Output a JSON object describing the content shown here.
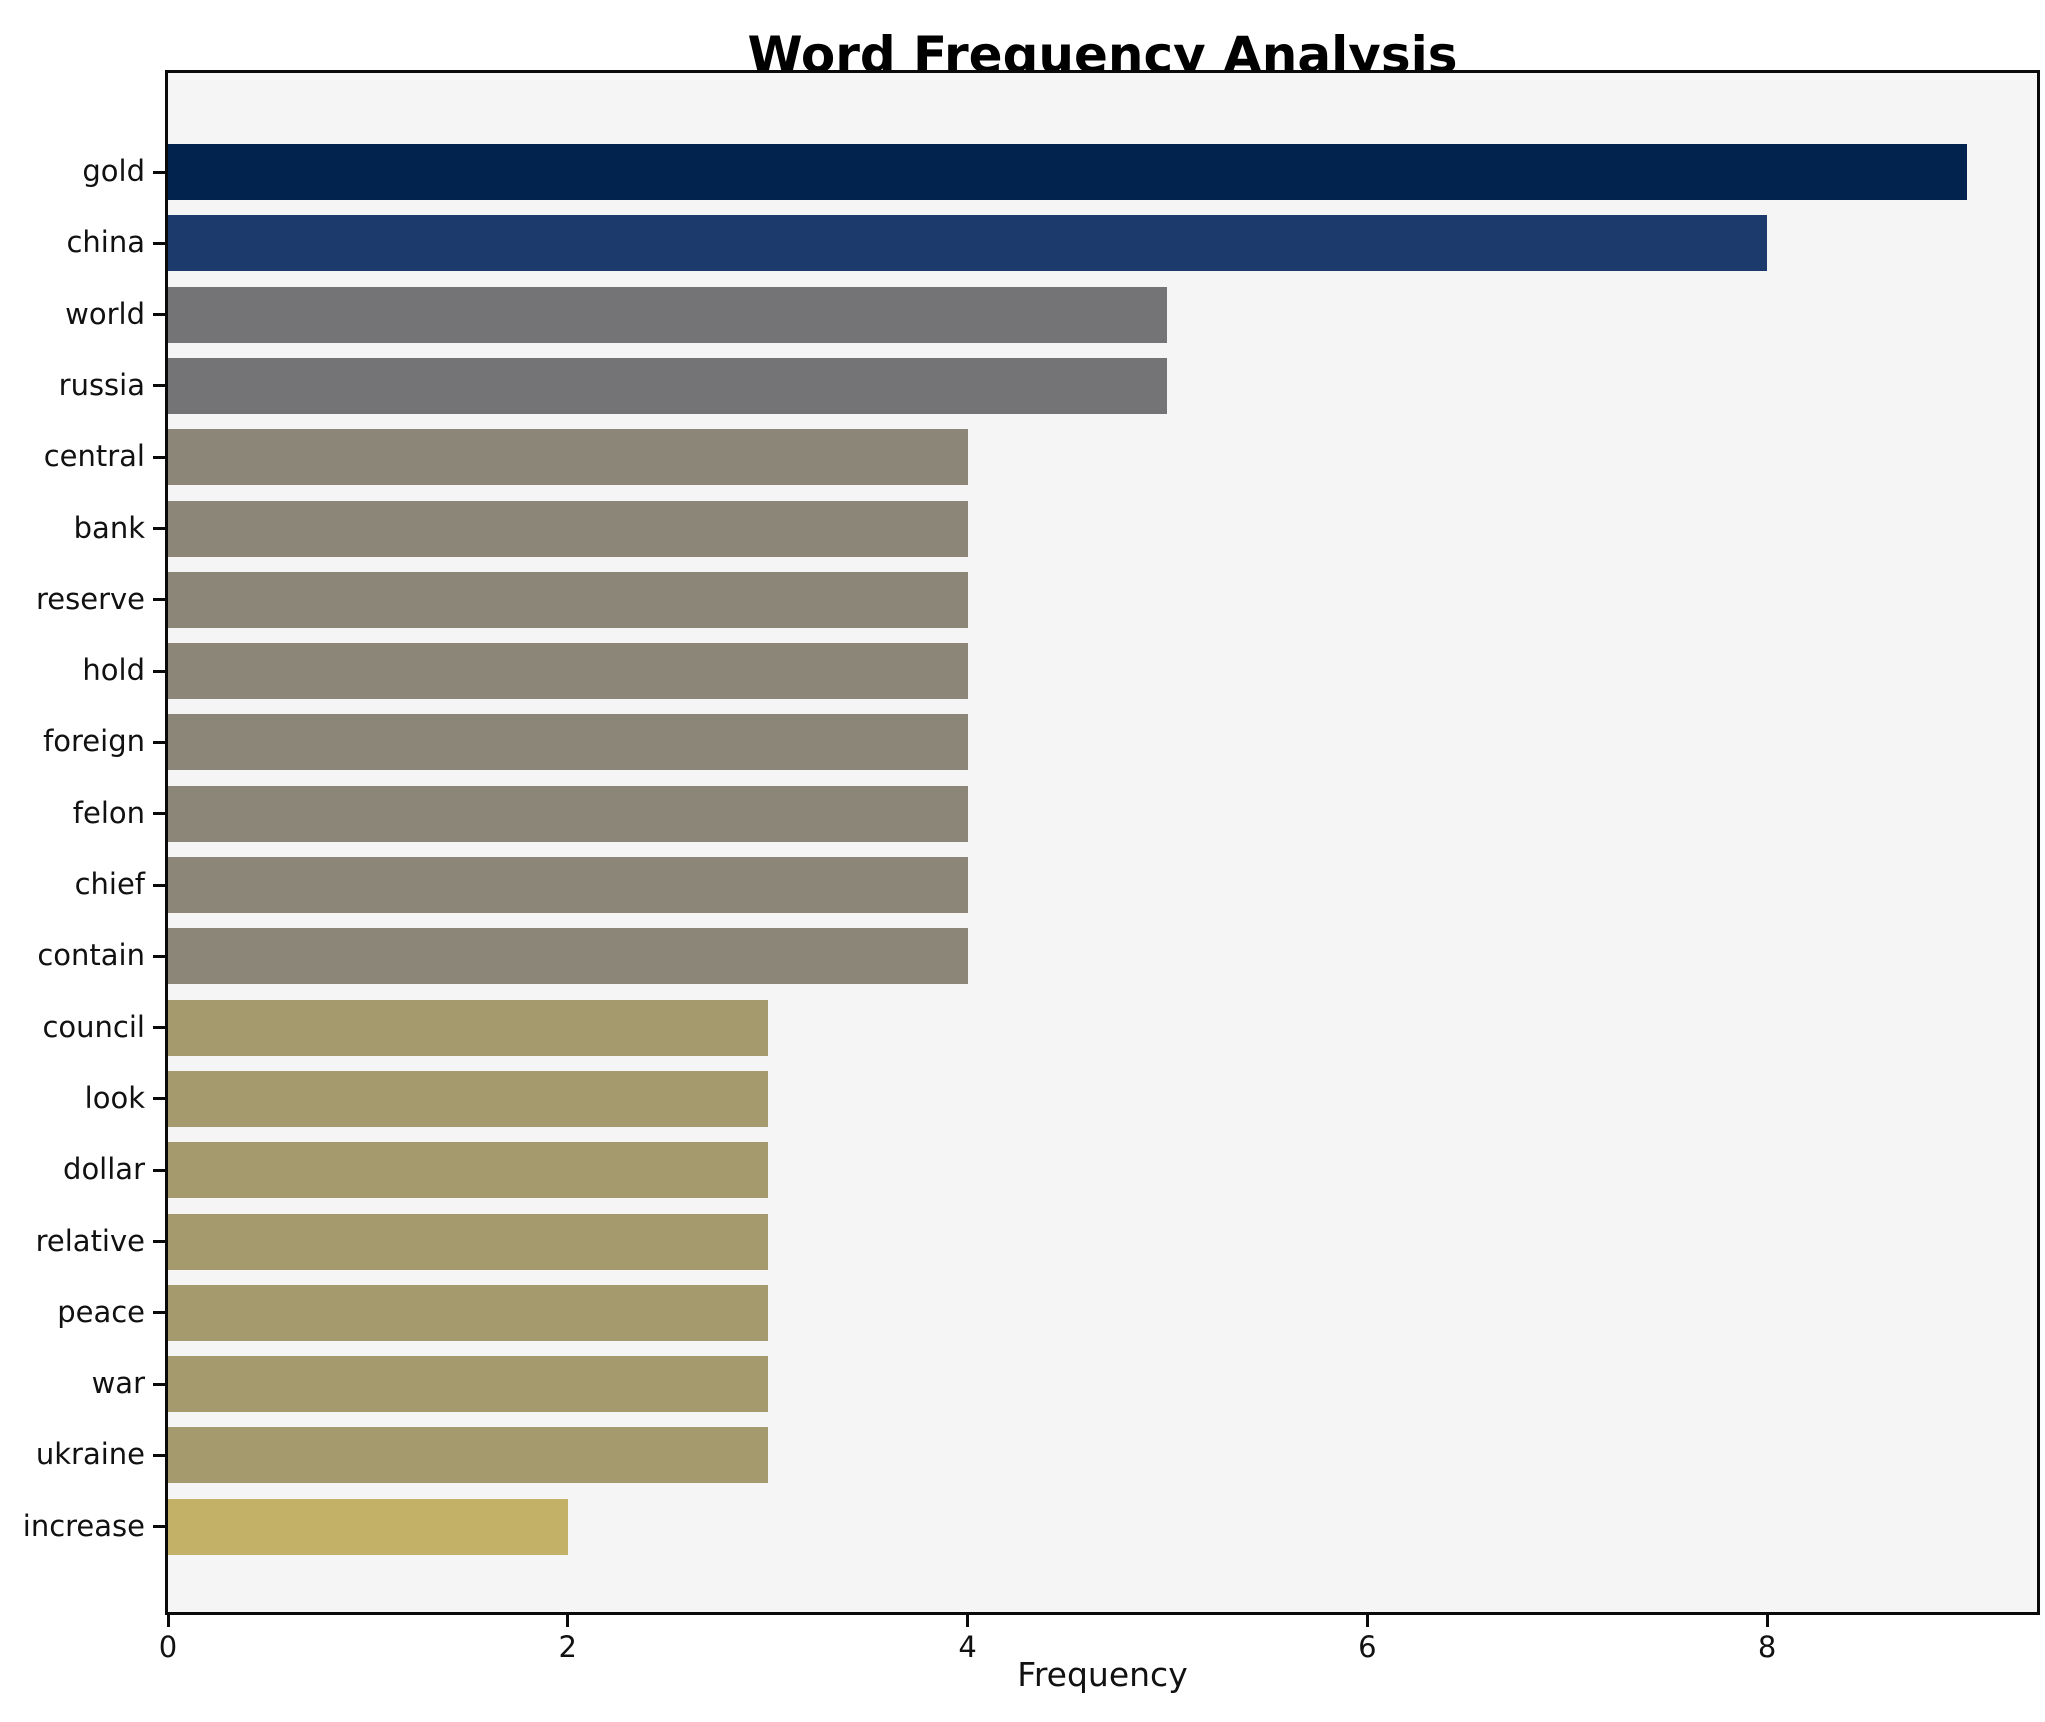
{
  "chart_data": {
    "type": "bar",
    "orientation": "horizontal",
    "title": "Word Frequency Analysis",
    "xlabel": "Frequency",
    "ylabel": "",
    "categories": [
      "gold",
      "china",
      "world",
      "russia",
      "central",
      "bank",
      "reserve",
      "hold",
      "foreign",
      "felon",
      "chief",
      "contain",
      "council",
      "look",
      "dollar",
      "relative",
      "peace",
      "war",
      "ukraine",
      "increase"
    ],
    "values": [
      9,
      8,
      5,
      5,
      4,
      4,
      4,
      4,
      4,
      4,
      4,
      4,
      3,
      3,
      3,
      3,
      3,
      3,
      3,
      2
    ],
    "bar_colors": [
      "#02234e",
      "#1d3a6d",
      "#747476",
      "#747476",
      "#8b8678",
      "#8b8678",
      "#8b8678",
      "#8b8678",
      "#8b8678",
      "#8b8678",
      "#8b8678",
      "#8b8678",
      "#a49a6e",
      "#a49a6e",
      "#a49a6e",
      "#a49a6e",
      "#a49a6e",
      "#a49a6e",
      "#a49a6e",
      "#c2b166"
    ],
    "x_ticks": [
      0,
      2,
      4,
      6,
      8
    ],
    "xlim": [
      0,
      9.35
    ],
    "grid": false,
    "legend": null,
    "plot_background": "#f5f5f6",
    "figure_background": "#ffffff",
    "spine_color": "#0a0a0a",
    "text_color": "#111111"
  }
}
